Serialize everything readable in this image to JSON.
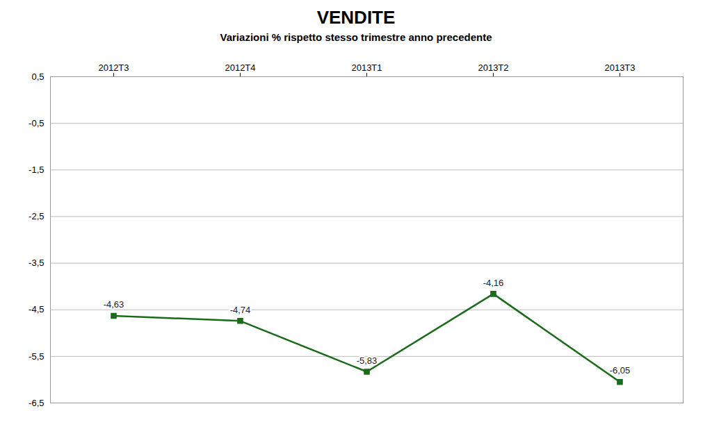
{
  "chart_data": {
    "type": "line",
    "title": "VENDITE",
    "subtitle": "Variazioni % rispetto stesso trimestre anno precedente",
    "categories": [
      "2012T3",
      "2012T4",
      "2013T1",
      "2013T2",
      "2013T3"
    ],
    "values": [
      -4.63,
      -4.74,
      -5.83,
      -4.16,
      -6.05
    ],
    "value_labels": [
      "-4,63",
      "-4,74",
      "-5,83",
      "-4,16",
      "-6,05"
    ],
    "data_labels": true,
    "color": "#1a6b1a",
    "marker": "square",
    "ylim": [
      -6.5,
      0.5
    ],
    "yticks": [
      {
        "value": 0.5,
        "label": "0,5"
      },
      {
        "value": -0.5,
        "label": "-0,5"
      },
      {
        "value": -1.5,
        "label": "-1,5"
      },
      {
        "value": -2.5,
        "label": "-2,5"
      },
      {
        "value": -3.5,
        "label": "-3,5"
      },
      {
        "value": -4.5,
        "label": "-4,5"
      },
      {
        "value": -5.5,
        "label": "-5,5"
      },
      {
        "value": -6.5,
        "label": "-6,5"
      }
    ],
    "grid": true
  }
}
